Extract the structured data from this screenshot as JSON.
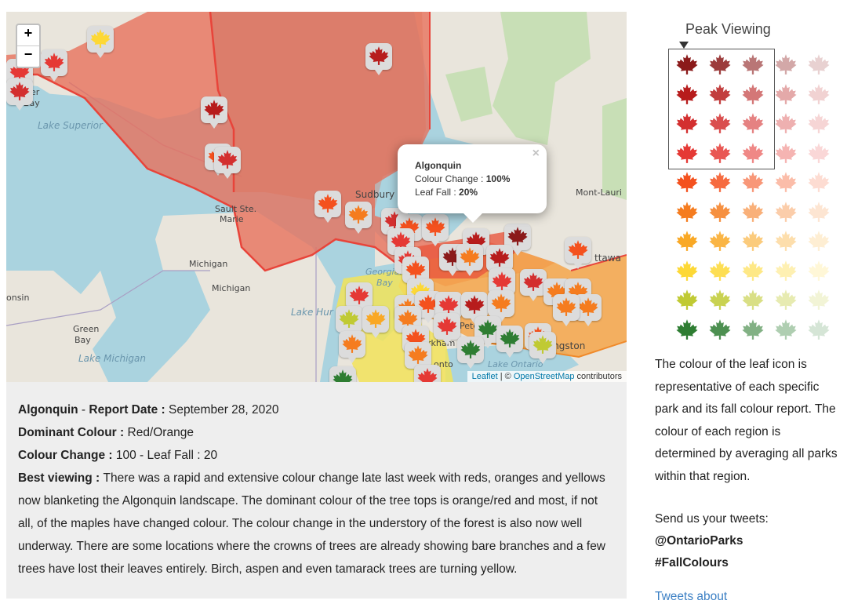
{
  "map": {
    "zoom_in": "+",
    "zoom_out": "−",
    "labels": {
      "lake_superior": "Lake Superior",
      "sudbury": "Sudbury",
      "sault_ste_marie_1": "Sault Ste.",
      "sault_ste_marie_2": "Marie",
      "michigan_1": "Michigan",
      "michigan_2": "Michigan",
      "georgian_bay_1": "Georgian",
      "georgian_bay_2": "Bay",
      "lake_huron": "Lake Hur",
      "green_bay_1": "Green",
      "green_bay_2": "Bay",
      "lake_michigan": "Lake Michigan",
      "lake_ontario": "Lake Ontario",
      "kingston": "Kingston",
      "ottawa": "ttawa",
      "montlaurier": "Mont-Lauri",
      "wisconsin": "onsin",
      "peterborough": "Pete",
      "markham": "rkham",
      "toronto": "onto",
      "thunder_bay_1": "nder",
      "thunder_bay_2": "Bay"
    },
    "popup": {
      "close": "×",
      "park": "Algonquin",
      "colour_change_label": "Colour Change : ",
      "colour_change_value": "100%",
      "leaf_fall_label": "Leaf Fall : ",
      "leaf_fall_value": "20%"
    },
    "attribution": {
      "leaflet": "Leaflet",
      "sep": " | © ",
      "osm": "OpenStreetMap",
      "contributors": " contributors"
    },
    "region_colors": {
      "north": "#e8705a",
      "central": "#ec8a5a",
      "south_east": "#f5a64a",
      "south_west": "#f2e35a",
      "outline": "#e8443a"
    }
  },
  "report": {
    "park": "Algonquin",
    "dash": " - ",
    "report_date_label": "Report Date : ",
    "report_date": "September 28, 2020",
    "dominant_label": "Dominant Colour : ",
    "dominant_value": "Red/Orange",
    "change_label": "Colour Change : ",
    "change_value": "100 - Leaf Fall : 20",
    "best_label": "Best viewing : ",
    "best_text": "There was a rapid and extensive colour change late last week with reds, oranges and yellows now blanketing the Algonquin landscape. The dominant colour of the tree tops is orange/red and most, if not all, of the maples have changed colour. The colour change in the understory of the forest is also now well underway. There are some locations where the crowns of trees are already showing bare branches and a few trees have lost their leaves entirely. Birch, aspen and even tamarack trees are turning yellow."
  },
  "legend": {
    "peak_title": "Peak Viewing",
    "leaf_colors": [
      "#8b1a1a",
      "#b71c1c",
      "#d32f2f",
      "#e53935",
      "#f4511e",
      "#f57c1f",
      "#f9a825",
      "#fdd835",
      "#c0ca33",
      "#2e7d32"
    ],
    "icon": "maple-leaf-icon"
  },
  "sidebar": {
    "description": "The colour of the leaf icon is representative of each specific park and its fall colour report. The colour of each region is determined by averaging all parks within that region.",
    "send_label": "Send us your tweets:",
    "handle": "@OntarioParks",
    "hashtag": "#FallColours",
    "tweets_link": "Tweets about"
  }
}
